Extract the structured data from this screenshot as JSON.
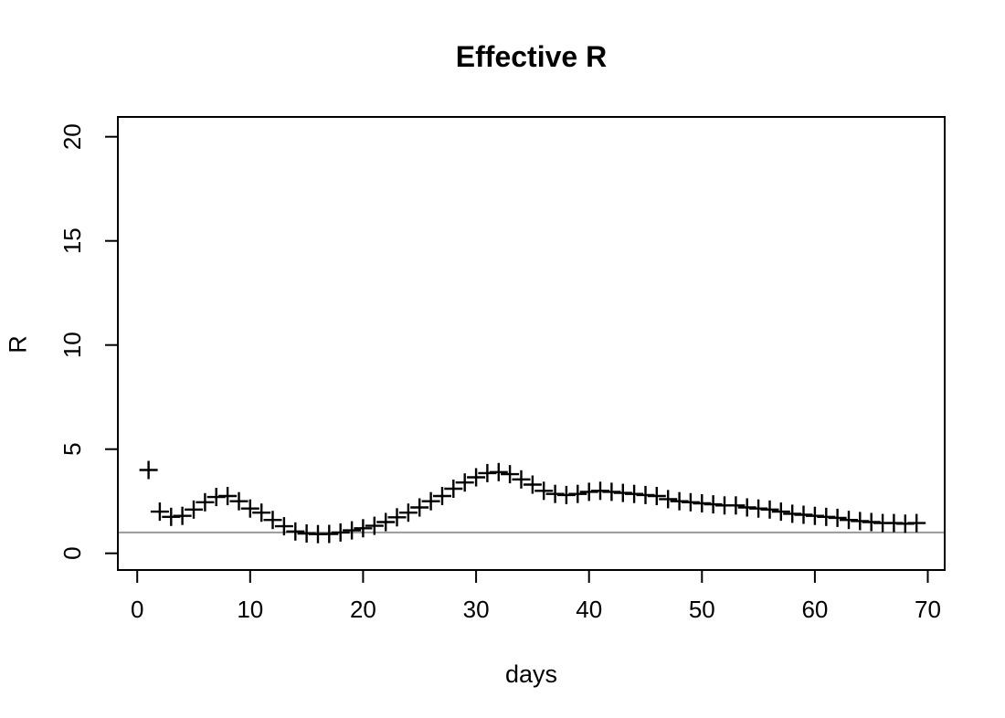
{
  "figure": {
    "background_color": "#ffffff"
  },
  "chart_data": {
    "type": "scatter",
    "title": "Effective R",
    "xlabel": "days",
    "ylabel": "R",
    "marker": "plus",
    "grid": false,
    "legend_position": "none",
    "x_ticks": [
      0,
      10,
      20,
      30,
      40,
      50,
      60,
      70
    ],
    "y_ticks": [
      0,
      5,
      10,
      15,
      20
    ],
    "xlim": [
      -1.7,
      71.7
    ],
    "ylim": [
      -0.8,
      20.9
    ],
    "x": [
      1,
      2,
      3,
      4,
      5,
      6,
      7,
      8,
      9,
      10,
      11,
      12,
      13,
      14,
      15,
      16,
      17,
      18,
      19,
      20,
      21,
      22,
      23,
      24,
      25,
      26,
      27,
      28,
      29,
      30,
      31,
      32,
      33,
      34,
      35,
      36,
      37,
      38,
      39,
      40,
      41,
      42,
      43,
      44,
      45,
      46,
      47,
      48,
      49,
      50,
      51,
      52,
      53,
      54,
      55,
      56,
      57,
      58,
      59,
      60,
      61,
      62,
      63,
      64,
      65,
      66,
      67,
      68,
      69
    ],
    "y": [
      4.0,
      2.0,
      1.75,
      1.8,
      2.1,
      2.45,
      2.7,
      2.75,
      2.5,
      2.15,
      1.95,
      1.6,
      1.3,
      1.05,
      0.95,
      0.92,
      0.93,
      1.0,
      1.1,
      1.2,
      1.32,
      1.5,
      1.73,
      1.95,
      2.2,
      2.5,
      2.75,
      3.1,
      3.4,
      3.65,
      3.85,
      3.9,
      3.8,
      3.55,
      3.3,
      3.0,
      2.85,
      2.8,
      2.85,
      2.95,
      3.0,
      2.95,
      2.9,
      2.85,
      2.8,
      2.75,
      2.6,
      2.5,
      2.45,
      2.4,
      2.35,
      2.3,
      2.3,
      2.2,
      2.15,
      2.1,
      2.0,
      1.9,
      1.85,
      1.8,
      1.75,
      1.7,
      1.6,
      1.55,
      1.5,
      1.45,
      1.45,
      1.42,
      1.45
    ],
    "reference_line": {
      "y": 1,
      "color": "#999999",
      "orientation": "horizontal"
    },
    "colors": {
      "points": "#000000",
      "axis": "#000000",
      "tick_labels": "#000000",
      "background": "#ffffff"
    }
  }
}
